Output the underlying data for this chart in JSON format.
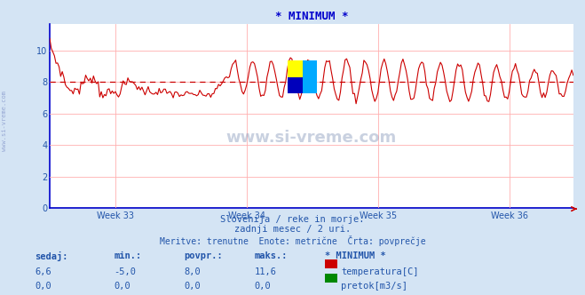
{
  "title": "* MINIMUM *",
  "title_color": "#0000cc",
  "bg_color": "#d4e4f4",
  "plot_bg_color": "#ffffff",
  "grid_color": "#ffb0b0",
  "axis_color": "#0000cc",
  "line_color": "#cc0000",
  "flow_color": "#008800",
  "avg_value": 8.0,
  "avg_line_color": "#cc0000",
  "watermark_text": "www.si-vreme.com",
  "watermark_color": "#8899bb",
  "left_label": "www.si-vreme.com",
  "week_labels": [
    "Week 33",
    "Week 34",
    "Week 35",
    "Week 36"
  ],
  "xlim": [
    0,
    335
  ],
  "ylim": [
    0,
    11.7
  ],
  "yticks": [
    0,
    2,
    4,
    6,
    8,
    10
  ],
  "subtitle1": "Slovenija / reke in morje.",
  "subtitle2": "zadnji mesec / 2 uri.",
  "subtitle3": "Meritve: trenutne  Enote: metrične  Črta: povprečje",
  "subtitle_color": "#2255aa",
  "table_headers": [
    "sedaj:",
    "min.:",
    "povpr.:",
    "maks.:",
    "* MINIMUM *"
  ],
  "table_row1_vals": [
    "6,6",
    "-5,0",
    "8,0",
    "11,6"
  ],
  "table_row1_label": "temperatura[C]",
  "table_row2_vals": [
    "0,0",
    "0,0",
    "0,0",
    "0,0"
  ],
  "table_row2_label": "pretok[m3/s]",
  "table_color": "#2255aa",
  "legend_color1": "#cc0000",
  "legend_color2": "#008800",
  "n_points": 336,
  "logo_colors": {
    "top_left": "#ffff00",
    "top_right": "#00aaff",
    "bottom_left": "#0000bb",
    "bottom_right": "#00aaff"
  }
}
